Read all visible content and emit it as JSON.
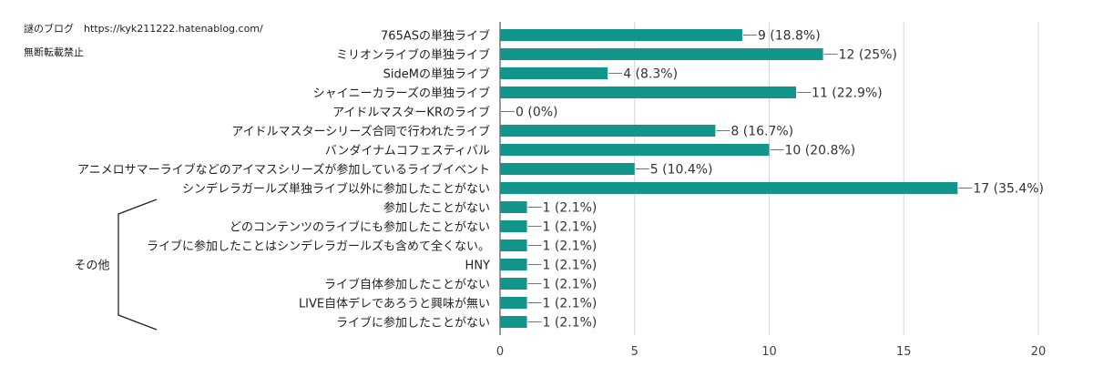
{
  "watermark": {
    "line1": "謎のブログ　https://kyk211222.hatenablog.com/",
    "line2": "無断転載禁止"
  },
  "chart_data": {
    "type": "bar",
    "orientation": "horizontal",
    "categories": [
      "765ASの単独ライブ",
      "ミリオンライブの単独ライブ",
      "SideMの単独ライブ",
      "シャイニーカラーズの単独ライブ",
      "アイドルマスターKRのライブ",
      "アイドルマスターシリーズ合同で行われたライブ",
      "バンダイナムコフェスティバル",
      "アニメロサマーライブなどのアイマスシリーズが参加しているライブイベント",
      "シンデレラガールズ単独ライブ以外に参加したことがない",
      "参加したことがない",
      "どのコンテンツのライブにも参加したことがない",
      "ライブに参加したことはシンデレラガールズも含めて全くない。",
      "HNY",
      "ライブ自体参加したことがない",
      "LIVE自体デレであろうと興味が無い",
      "ライブに参加したことがない"
    ],
    "values": [
      9,
      12,
      4,
      11,
      0,
      8,
      10,
      5,
      17,
      1,
      1,
      1,
      1,
      1,
      1,
      1
    ],
    "value_labels": [
      "9 (18.8%)",
      "12 (25%)",
      "4 (8.3%)",
      "11 (22.9%)",
      "0 (0%)",
      "8 (16.7%)",
      "10 (20.8%)",
      "5 (10.4%)",
      "17 (35.4%)",
      "1 (2.1%)",
      "1 (2.1%)",
      "1 (2.1%)",
      "1 (2.1%)",
      "1 (2.1%)",
      "1 (2.1%)",
      "1 (2.1%)"
    ],
    "xlim": [
      0,
      20
    ],
    "xticks": [
      "0",
      "5",
      "10",
      "15",
      "20"
    ],
    "grid": true,
    "bar_color": "#12958a",
    "group_annotation": {
      "label": "その他",
      "first_index": 9,
      "last_index": 15
    }
  }
}
